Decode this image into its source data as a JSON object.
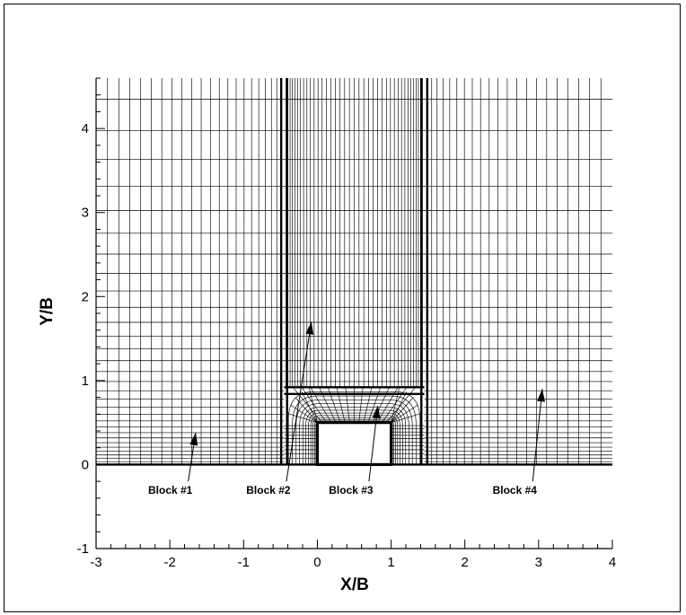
{
  "chart_data": {
    "type": "diagram",
    "xlabel": "X/B",
    "ylabel": "Y/B",
    "xlim": [
      -3,
      4
    ],
    "ylim": [
      -1,
      4.6
    ],
    "x_ticks": [
      "-3",
      "-2",
      "-1",
      "0",
      "1",
      "2",
      "3",
      "4"
    ],
    "y_ticks": [
      "-1",
      "0",
      "1",
      "2",
      "3",
      "4"
    ],
    "grid": false,
    "obstacle": {
      "x": [
        0,
        1
      ],
      "y": [
        0,
        0.5
      ]
    },
    "blocks": [
      {
        "label": "Block #1",
        "x_range": [
          -3,
          -0.45
        ],
        "y_range": [
          0,
          4.6
        ],
        "arrow_from": [
          -1.75,
          -0.2
        ],
        "arrow_to": [
          -1.65,
          0.38
        ]
      },
      {
        "label": "Block #2",
        "x_range": [
          -0.45,
          1.45
        ],
        "y_range": [
          0.92,
          4.6
        ],
        "arrow_from": [
          -0.42,
          -0.2
        ],
        "arrow_to": [
          -0.08,
          1.7
        ]
      },
      {
        "label": "Block #3",
        "x_range": [
          -0.45,
          1.45
        ],
        "y_range": [
          0,
          0.92
        ],
        "arrow_from": [
          0.7,
          -0.2
        ],
        "arrow_to": [
          0.82,
          0.7
        ]
      },
      {
        "label": "Block #4",
        "x_range": [
          1.45,
          4
        ],
        "y_range": [
          0,
          4.6
        ],
        "arrow_from": [
          2.92,
          -0.2
        ],
        "arrow_to": [
          3.05,
          0.9
        ]
      }
    ]
  }
}
